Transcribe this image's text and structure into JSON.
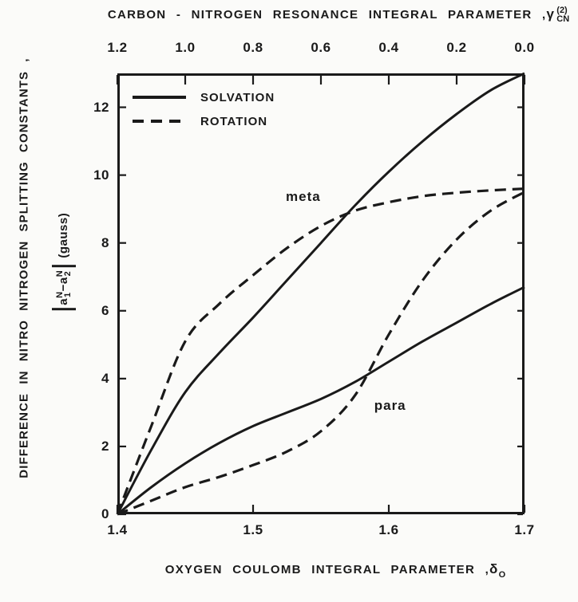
{
  "chart_data": {
    "type": "line",
    "title": "Difference in nitro nitrogen splitting constants vs oxygen coulomb integral parameter",
    "top_axis": {
      "title_prefix": "CARBON - NITROGEN  RESONANCE  INTEGRAL  PARAMETER ,",
      "symbol": "γ",
      "symbol_sup": "(2)",
      "symbol_sub": "CN",
      "tick_labels": [
        "1.2",
        "1.0",
        "0.8",
        "0.6",
        "0.4",
        "0.2",
        "0.0"
      ],
      "tick_positions_delta": [
        1.4,
        1.45,
        1.5,
        1.55,
        1.6,
        1.65,
        1.7
      ]
    },
    "bottom_axis": {
      "title_prefix": "OXYGEN  COULOMB  INTEGRAL  PARAMETER ,",
      "symbol": "δ",
      "symbol_sub": "O",
      "tick_labels": [
        "1.4",
        "1.5",
        "1.6",
        "1.7"
      ],
      "tick_values": [
        1.4,
        1.5,
        1.6,
        1.7
      ]
    },
    "y_axis": {
      "title_line": "DIFFERENCE  IN  NITRO  NITROGEN  SPLITTING  CONSTANTS ,",
      "math_a": "a",
      "math_sup": "N",
      "math_sub1": "1",
      "math_sub2": "2",
      "math_minus": "−",
      "math_unit": "(gauss)",
      "tick_labels": [
        "0",
        "2",
        "4",
        "6",
        "8",
        "10",
        "12"
      ],
      "tick_values": [
        0,
        2,
        4,
        6,
        8,
        10,
        12
      ]
    },
    "legend": [
      {
        "label": "SOLVATION",
        "style": "solid"
      },
      {
        "label": "ROTATION",
        "style": "dashed"
      }
    ],
    "xlim": [
      1.4,
      1.7
    ],
    "ylim": [
      0,
      13
    ],
    "grid": false,
    "legend_position": "top-left-inside",
    "ink_color": "#1a1a1a",
    "background": "#fbfbf9",
    "x": [
      1.4,
      1.425,
      1.45,
      1.475,
      1.5,
      1.525,
      1.55,
      1.575,
      1.6,
      1.625,
      1.65,
      1.675,
      1.7
    ],
    "series": [
      {
        "name": "meta-solvation",
        "group": "SOLVATION",
        "style": "solid",
        "values": [
          0,
          1.9,
          3.6,
          4.75,
          5.8,
          6.9,
          8.0,
          9.1,
          10.1,
          11.0,
          11.8,
          12.5,
          13.0
        ]
      },
      {
        "name": "meta-rotation",
        "group": "ROTATION",
        "style": "dashed",
        "values": [
          0,
          2.6,
          5.1,
          6.2,
          7.05,
          7.85,
          8.5,
          8.95,
          9.2,
          9.38,
          9.48,
          9.55,
          9.6
        ]
      },
      {
        "name": "para-solvation",
        "group": "SOLVATION",
        "style": "solid",
        "values": [
          0,
          0.8,
          1.5,
          2.1,
          2.6,
          3.0,
          3.4,
          3.9,
          4.5,
          5.1,
          5.65,
          6.2,
          6.7
        ]
      },
      {
        "name": "para-rotation",
        "group": "ROTATION",
        "style": "dashed",
        "values": [
          0,
          0.4,
          0.8,
          1.1,
          1.45,
          1.85,
          2.45,
          3.5,
          5.3,
          6.9,
          8.1,
          8.95,
          9.5
        ]
      }
    ],
    "annotations": [
      {
        "text": "meta",
        "x": 1.537,
        "y": 9.35
      },
      {
        "text": "para",
        "x": 1.601,
        "y": 3.2
      }
    ]
  }
}
